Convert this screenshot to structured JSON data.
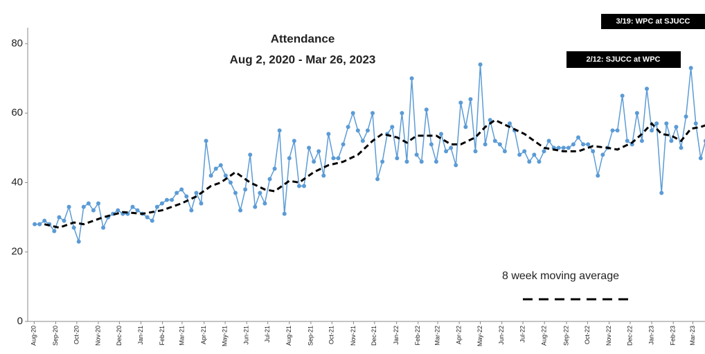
{
  "chart_data": {
    "type": "line",
    "title": "Attendance",
    "subtitle": "Aug 2, 2020 - Mar 26, 2023",
    "xlim": [
      -1,
      139
    ],
    "ylim": [
      0,
      80
    ],
    "yticks": [
      0,
      20,
      40,
      60,
      80
    ],
    "xticks": [
      {
        "value": -0.1,
        "label": "Aug-20"
      },
      {
        "value": 4.3,
        "label": "Sep-20"
      },
      {
        "value": 8.6,
        "label": "Oct-20"
      },
      {
        "value": 13,
        "label": "Nov-20"
      },
      {
        "value": 17.3,
        "label": "Dec-20"
      },
      {
        "value": 21.7,
        "label": "Jan-21"
      },
      {
        "value": 26.1,
        "label": "Feb-21"
      },
      {
        "value": 30.1,
        "label": "Mar-21"
      },
      {
        "value": 34.6,
        "label": "Apr-21"
      },
      {
        "value": 38.9,
        "label": "May-21"
      },
      {
        "value": 43.3,
        "label": "Jun-21"
      },
      {
        "value": 47.6,
        "label": "Jul-21"
      },
      {
        "value": 52,
        "label": "Aug-21"
      },
      {
        "value": 56.4,
        "label": "Sep-21"
      },
      {
        "value": 60.7,
        "label": "Oct-21"
      },
      {
        "value": 65.1,
        "label": "Nov-21"
      },
      {
        "value": 69.4,
        "label": "Dec-21"
      },
      {
        "value": 73.9,
        "label": "Jan-22"
      },
      {
        "value": 78.3,
        "label": "Feb-22"
      },
      {
        "value": 82.3,
        "label": "Mar-22"
      },
      {
        "value": 86.7,
        "label": "Apr-22"
      },
      {
        "value": 91,
        "label": "May-22"
      },
      {
        "value": 95.4,
        "label": "Jun-22"
      },
      {
        "value": 99.7,
        "label": "Jul-22"
      },
      {
        "value": 104.1,
        "label": "Aug-22"
      },
      {
        "value": 108.6,
        "label": "Sep-22"
      },
      {
        "value": 112.9,
        "label": "Oct-22"
      },
      {
        "value": 117.3,
        "label": "Nov-22"
      },
      {
        "value": 121.6,
        "label": "Dec-22"
      },
      {
        "value": 126,
        "label": "Jan-23"
      },
      {
        "value": 130.4,
        "label": "Feb-23"
      },
      {
        "value": 134.4,
        "label": "Mar-23"
      }
    ],
    "x": [
      0,
      1,
      2,
      3,
      4,
      5,
      6,
      7,
      8,
      9,
      10,
      11,
      12,
      13,
      14,
      15,
      16,
      17,
      18,
      19,
      20,
      21,
      22,
      23,
      24,
      25,
      26,
      27,
      28,
      29,
      30,
      31,
      32,
      33,
      34,
      35,
      36,
      37,
      38,
      39,
      40,
      41,
      42,
      43,
      44,
      45,
      46,
      47,
      48,
      49,
      50,
      51,
      52,
      53,
      54,
      55,
      56,
      57,
      58,
      59,
      60,
      61,
      62,
      63,
      64,
      65,
      66,
      67,
      68,
      69,
      70,
      71,
      72,
      73,
      74,
      75,
      76,
      77,
      78,
      79,
      80,
      81,
      82,
      83,
      84,
      85,
      86,
      87,
      88,
      89,
      90,
      91,
      92,
      93,
      94,
      95,
      96,
      97,
      98,
      99,
      100,
      101,
      102,
      103,
      104,
      105,
      106,
      107,
      108,
      109,
      110,
      111,
      112,
      113,
      114,
      115,
      116,
      117,
      118,
      119,
      120,
      121,
      122,
      123,
      124,
      125,
      126,
      127,
      128,
      129,
      130,
      131,
      132,
      133,
      134,
      135,
      136,
      137,
      138
    ],
    "series": [
      {
        "color": "#5b9bd5",
        "values": [
          28,
          28,
          29,
          28,
          26,
          30,
          29,
          33,
          27,
          23,
          33,
          34,
          32,
          34,
          27,
          30,
          31,
          32,
          31,
          31,
          33,
          32,
          31,
          30,
          29,
          33,
          34,
          35,
          35,
          37,
          38,
          36,
          32,
          37,
          34,
          52,
          42,
          44,
          45,
          42,
          40,
          37,
          32,
          38,
          48,
          33,
          37,
          34,
          41,
          44,
          55,
          31,
          47,
          52,
          39,
          39,
          50,
          46,
          49,
          42,
          54,
          47,
          47,
          51,
          56,
          60,
          55,
          52,
          55,
          60,
          41,
          46,
          54,
          56,
          47,
          60,
          46,
          70,
          48,
          46,
          61,
          51,
          46,
          54,
          49,
          50,
          45,
          63,
          56,
          64,
          49,
          74,
          51,
          58,
          52,
          51,
          49,
          57,
          55,
          48,
          49,
          46,
          48,
          46,
          49,
          52,
          50,
          50,
          50,
          50,
          51,
          53,
          51,
          51,
          49,
          42,
          48,
          50,
          55,
          55,
          65,
          52,
          51,
          60,
          52,
          67,
          55,
          57,
          37,
          57,
          52,
          56,
          50,
          59,
          73,
          57,
          47,
          52,
          52
        ]
      },
      {
        "name": "8 week moving average",
        "color": "#000000",
        "dashed": true,
        "x": [
          2,
          5,
          8,
          10,
          14,
          18,
          22,
          26,
          30,
          33,
          36,
          38,
          41,
          44,
          47,
          49,
          52,
          54,
          57,
          60,
          63,
          66,
          69,
          71,
          74,
          76,
          78,
          82,
          85,
          87,
          90,
          92,
          94,
          97,
          100,
          104,
          108,
          111,
          114,
          117,
          119,
          122,
          124,
          126,
          128,
          130,
          132,
          134,
          136,
          138
        ],
        "values": [
          28,
          27,
          28.5,
          28,
          30,
          31.5,
          31,
          32,
          34,
          36,
          39,
          40,
          43,
          40,
          38,
          37.5,
          40.5,
          40,
          43,
          45,
          46,
          48,
          52,
          54,
          53,
          51.5,
          53.5,
          53.5,
          51,
          51,
          53,
          56,
          58,
          56,
          54,
          50,
          49,
          49,
          50.5,
          50,
          49.5,
          51.5,
          54,
          57,
          54,
          53.5,
          52,
          55.5,
          56,
          57
        ]
      }
    ],
    "annotations": [
      "3/19: WPC at SJUCC",
      "2/12: SJUCC at WPC"
    ]
  }
}
